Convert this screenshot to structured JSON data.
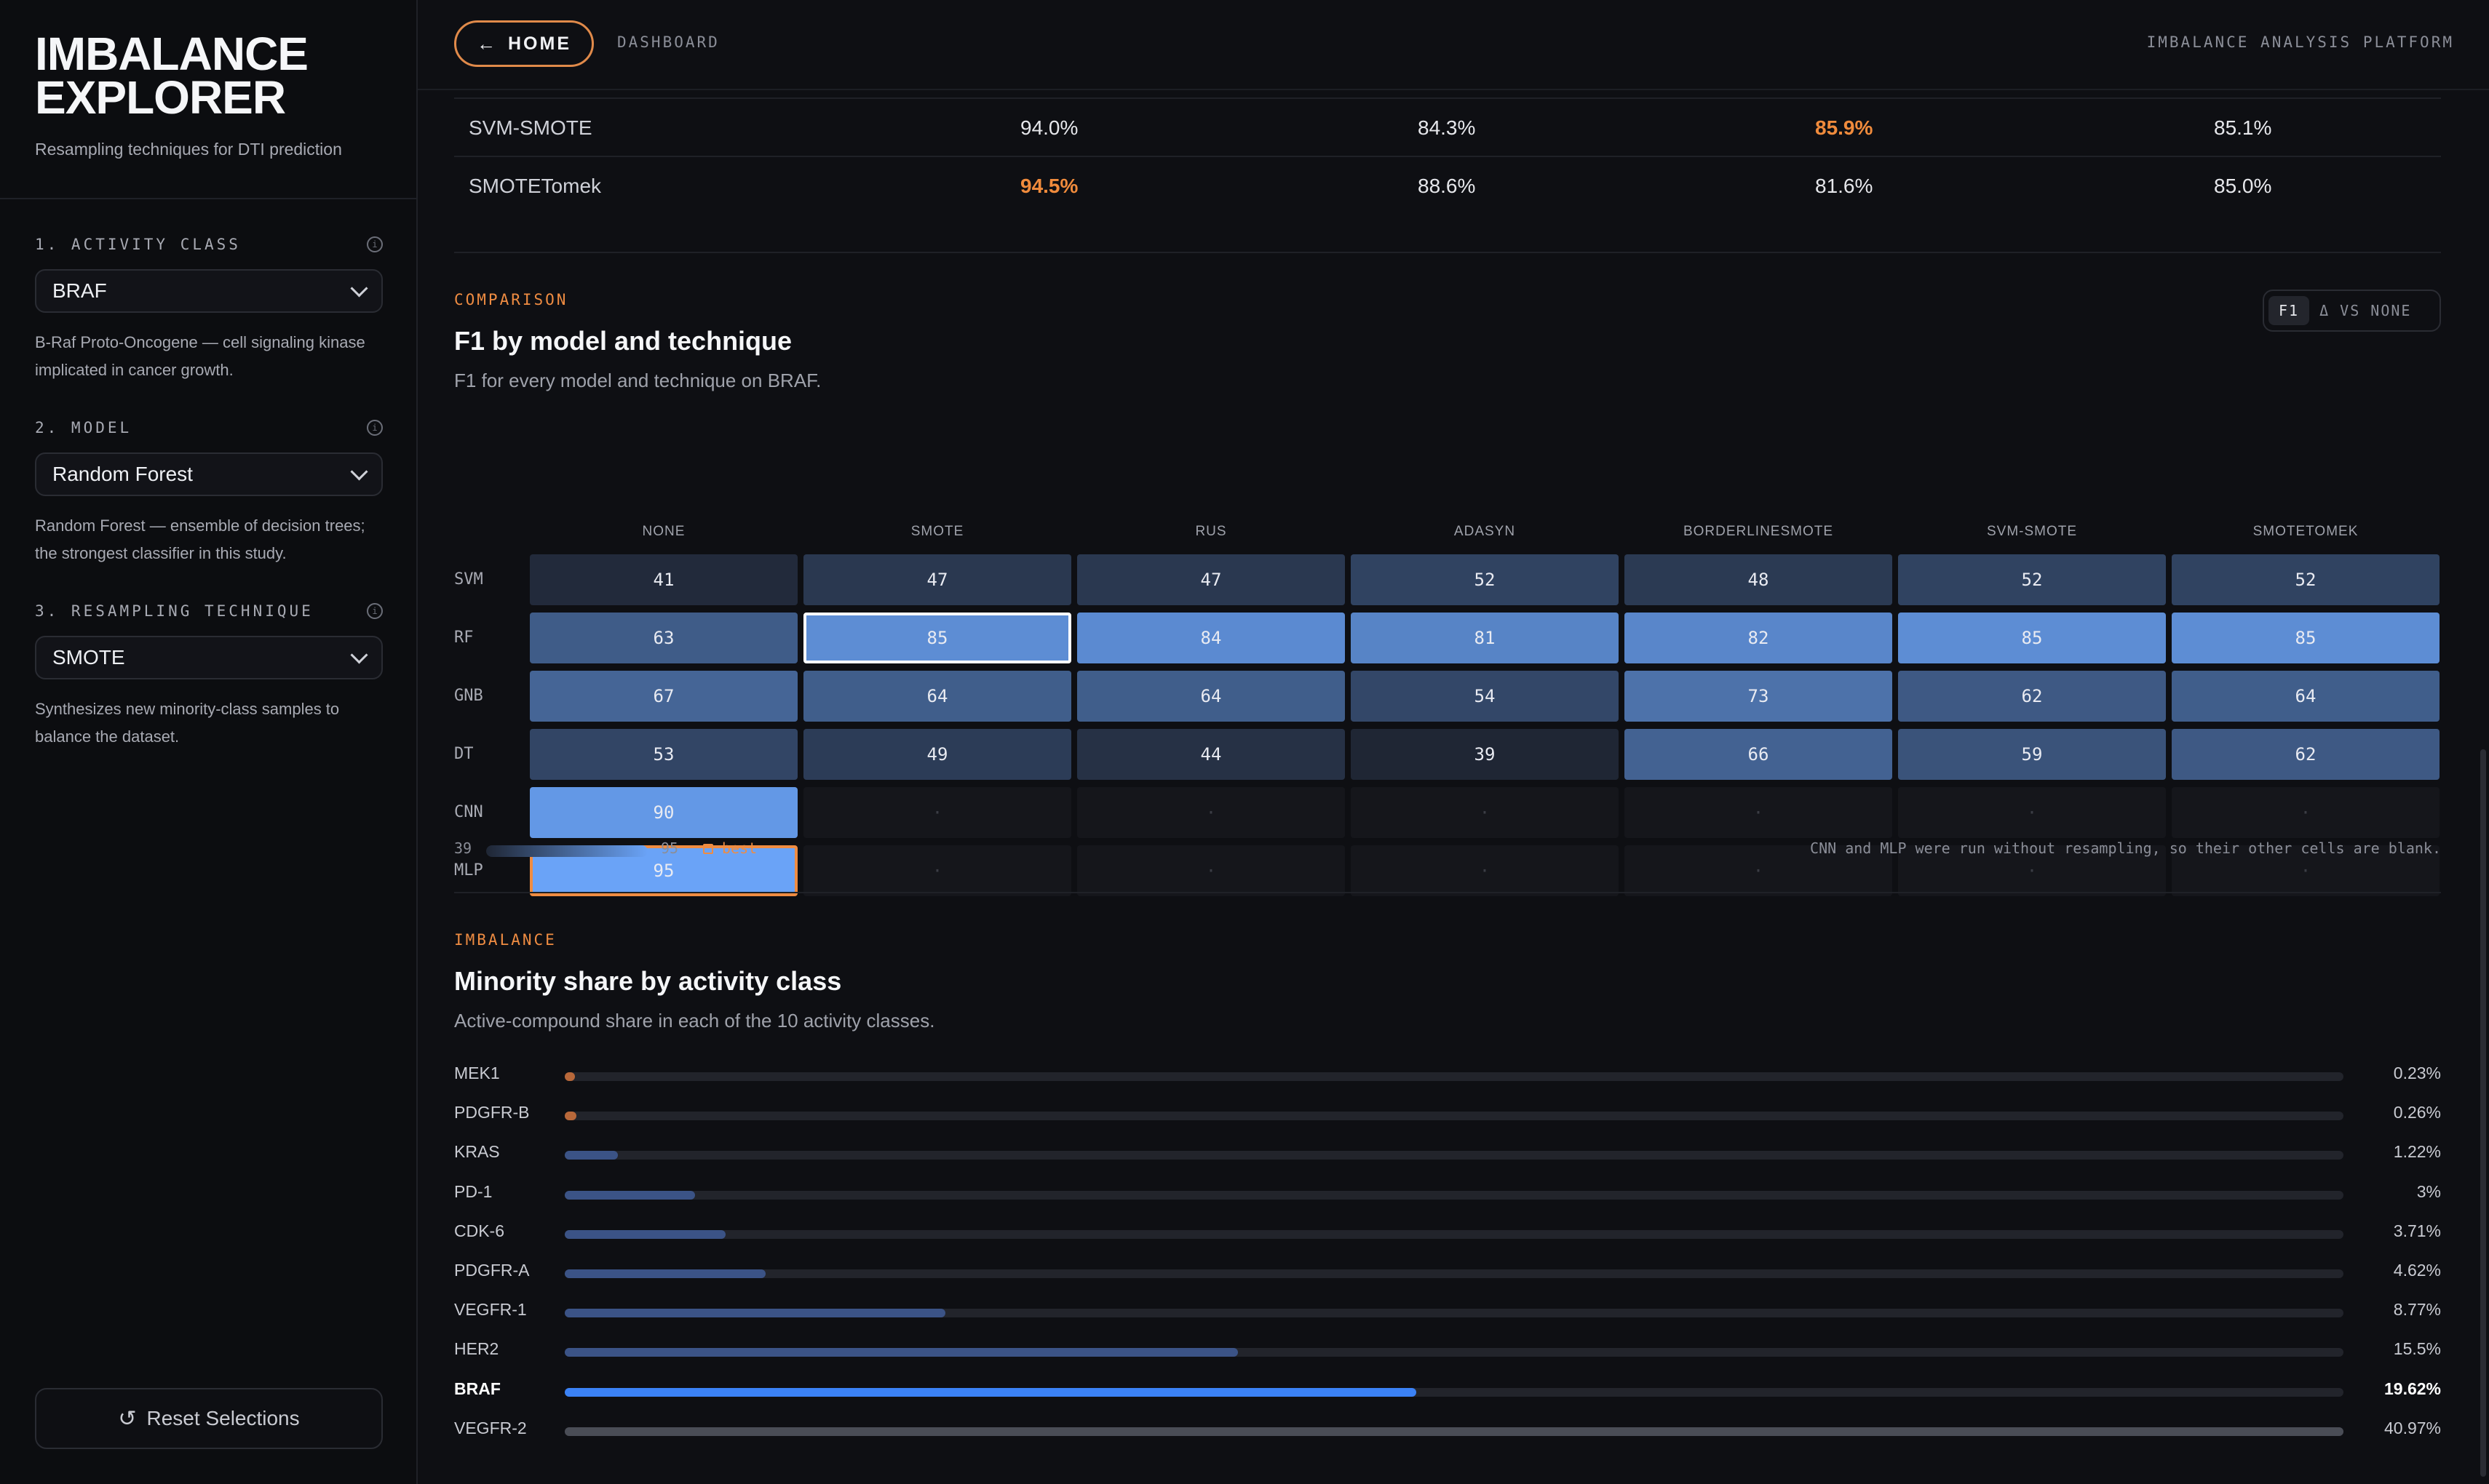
{
  "sidebar": {
    "title_line1": "IMBALANCE",
    "title_line2": "EXPLORER",
    "subtitle": "Resampling techniques for DTI prediction",
    "controls": [
      {
        "label": "1. ACTIVITY CLASS",
        "value": "BRAF",
        "description": "B-Raf Proto-Oncogene — cell signaling kinase implicated in cancer growth."
      },
      {
        "label": "2. MODEL",
        "value": "Random Forest",
        "description": "Random Forest — ensemble of decision trees; the strongest classifier in this study."
      },
      {
        "label": "3. RESAMPLING TECHNIQUE",
        "value": "SMOTE",
        "description": "Synthesizes new minority-class samples to balance the dataset."
      }
    ],
    "reset_label": "Reset Selections"
  },
  "topbar": {
    "home_label": "HOME",
    "breadcrumb": "DASHBOARD",
    "platform": "IMBALANCE ANALYSIS PLATFORM"
  },
  "metrics_table": {
    "rows": [
      {
        "name": "SVM-SMOTE",
        "values": [
          "94.0%",
          "84.3%",
          "85.9%",
          "85.1%"
        ],
        "highlight_index": 2
      },
      {
        "name": "SMOTETomek",
        "values": [
          "94.5%",
          "88.6%",
          "81.6%",
          "85.0%"
        ],
        "highlight_index": 0
      }
    ]
  },
  "comparison": {
    "tag": "COMPARISON",
    "title": "F1 by model and technique",
    "subtitle": "F1 for every model and technique on BRAF.",
    "toggle_primary": "F1",
    "toggle_secondary": "Δ VS NONE",
    "legend_min": "39",
    "legend_max": "95",
    "legend_best": "best",
    "note": "CNN and MLP were run without resampling, so their other cells are blank.",
    "empty_mark": "·"
  },
  "chart_data": [
    {
      "type": "heatmap",
      "title": "F1 by model and technique",
      "x": [
        "NONE",
        "SMOTE",
        "RUS",
        "ADASYN",
        "BORDERLINESMOTE",
        "SVM-SMOTE",
        "SMOTETOMEK"
      ],
      "y": [
        "SVM",
        "RF",
        "GNB",
        "DT",
        "CNN",
        "MLP"
      ],
      "values": [
        [
          41,
          47,
          47,
          52,
          48,
          52,
          52
        ],
        [
          63,
          85,
          84,
          81,
          82,
          85,
          85
        ],
        [
          67,
          64,
          64,
          54,
          73,
          62,
          64
        ],
        [
          53,
          49,
          44,
          39,
          66,
          59,
          62
        ],
        [
          90,
          null,
          null,
          null,
          null,
          null,
          null
        ],
        [
          95,
          null,
          null,
          null,
          null,
          null,
          null
        ]
      ],
      "range": [
        39,
        95
      ],
      "selected": {
        "row": "RF",
        "col": "SMOTE"
      },
      "best": {
        "row": "MLP",
        "col": "NONE"
      },
      "colors": {
        "low": "#1f2634",
        "high": "#6aa3f7",
        "best_outline": "#ef8c42",
        "selected_outline": "#ffffff"
      }
    },
    {
      "type": "bar",
      "title": "Minority share by activity class",
      "categories": [
        "MEK1",
        "PDGFR-B",
        "KRAS",
        "PD-1",
        "CDK-6",
        "PDGFR-A",
        "VEGFR-1",
        "HER2",
        "BRAF",
        "VEGFR-2"
      ],
      "values": [
        0.23,
        0.26,
        1.22,
        3,
        3.71,
        4.62,
        8.77,
        15.5,
        19.62,
        40.97
      ],
      "labels": [
        "0.23%",
        "0.26%",
        "1.22%",
        "3%",
        "3.71%",
        "4.62%",
        "8.77%",
        "15.5%",
        "19.62%",
        "40.97%"
      ],
      "xlim": [
        0,
        40.97
      ],
      "active": "BRAF",
      "colors": {
        "normal": "#3b5386",
        "active": "#3b82f6",
        "tiny": "#b8683a",
        "max": "#4a4d56",
        "track": "#22242b"
      }
    }
  ],
  "imbalance": {
    "tag": "IMBALANCE",
    "title": "Minority share by activity class",
    "subtitle": "Active-compound share in each of the 10 activity classes."
  }
}
